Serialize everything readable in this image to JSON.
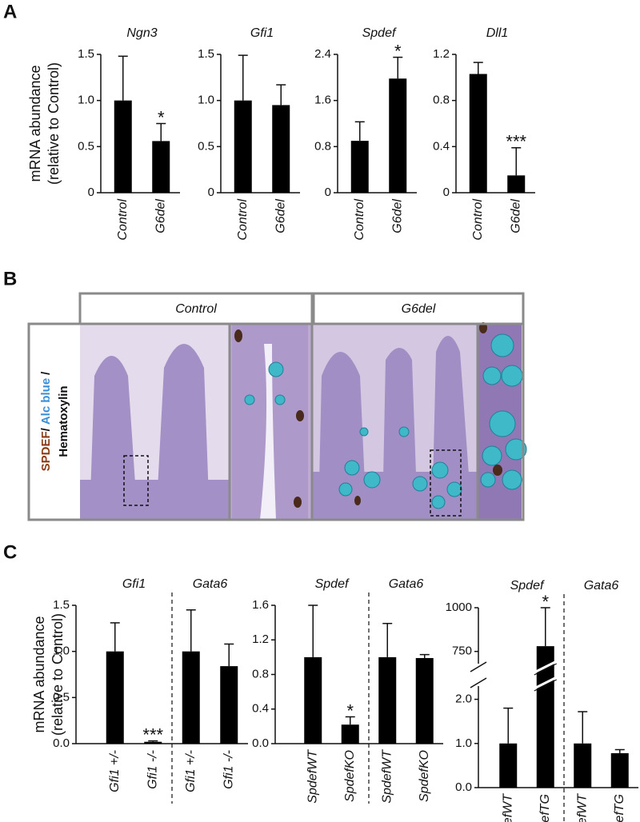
{
  "panel_labels": [
    "A",
    "B",
    "C"
  ],
  "panel_b": {
    "headers": [
      "Control",
      "G6del"
    ],
    "stain_label": [
      "SPDEF",
      "/",
      "Alc blue",
      "/",
      "Hematoxylin"
    ]
  },
  "chart_data": [
    {
      "type": "bar",
      "title": "Ngn3",
      "ylabel": [
        "mRNA abundance",
        "(relative to Control)"
      ],
      "color": "#000000",
      "categories": [
        "Control",
        "G6del"
      ],
      "values": [
        1.0,
        0.56
      ],
      "errors": [
        0.48,
        0.19
      ],
      "significance": [
        null,
        "*"
      ],
      "ylim": [
        0,
        1.5
      ],
      "yticks": [
        0,
        0.5,
        {
          "value": 1,
          "label": "1.0"
        },
        1.5
      ]
    },
    {
      "type": "bar",
      "title": "Gfi1",
      "color": "#000000",
      "categories": [
        "Control",
        "G6del"
      ],
      "values": [
        1.0,
        0.95
      ],
      "errors": [
        0.49,
        0.22
      ],
      "significance": [
        null,
        null
      ],
      "ylim": [
        0,
        1.5
      ],
      "yticks": [
        0,
        0.5,
        {
          "value": 1,
          "label": "1.0"
        },
        1.5
      ]
    },
    {
      "type": "bar",
      "title": "Spdef",
      "color": "#000000",
      "categories": [
        "Control",
        "G6del"
      ],
      "values": [
        0.9,
        1.98
      ],
      "errors": [
        0.33,
        0.37
      ],
      "significance": [
        null,
        "*"
      ],
      "ylim": [
        0,
        2.4
      ],
      "yticks": [
        0,
        0.8,
        1.6,
        2.4
      ]
    },
    {
      "type": "bar",
      "title": "Dll1",
      "color": "#000000",
      "categories": [
        "Control",
        "G6del"
      ],
      "values": [
        1.03,
        0.15
      ],
      "errors": [
        0.1,
        0.24
      ],
      "significance": [
        null,
        "***"
      ],
      "ylim": [
        0,
        1.2
      ],
      "yticks": [
        0,
        0.4,
        0.8,
        1.2
      ]
    },
    {
      "type": "bar",
      "group_titles": [
        "Gfi1",
        "Gata6"
      ],
      "ylabel": [
        "mRNA abundance",
        "(relative to Control)"
      ],
      "color": "#000000",
      "categories": [
        "Gfi1 +/-",
        "Gfi1 -/-",
        "Gfi1 +/-",
        "Gfi1 -/-"
      ],
      "values": [
        1.0,
        0.02,
        1.0,
        0.84
      ],
      "errors": [
        0.31,
        0.01,
        0.45,
        0.24
      ],
      "significance": [
        null,
        "***",
        null,
        null
      ],
      "ylim": [
        0,
        1.5
      ],
      "yticks": [
        {
          "value": 0,
          "label": "0.0"
        },
        0.5,
        {
          "value": 1,
          "label": "1.0"
        },
        1.5
      ]
    },
    {
      "type": "bar",
      "group_titles": [
        "Spdef",
        "Gata6"
      ],
      "color": "#000000",
      "categories": [
        "SpdefWT",
        "SpdefKO",
        "SpdefWT",
        "SpdefKO"
      ],
      "values": [
        1.0,
        0.22,
        1.0,
        0.99
      ],
      "errors": [
        0.6,
        0.09,
        0.39,
        0.04
      ],
      "significance": [
        null,
        "*",
        null,
        null
      ],
      "ylim": [
        0,
        1.6
      ],
      "yticks": [
        {
          "value": 0,
          "label": "0.0"
        },
        0.4,
        0.8,
        1.2,
        1.6
      ]
    },
    {
      "type": "bar",
      "group_titles": [
        "Spdef",
        "Gata6"
      ],
      "color": "#000000",
      "categories": [
        "SpdefWT",
        "SpdefTG",
        "SpdefWT",
        "SpdefTG"
      ],
      "values": [
        1.0,
        780,
        1.0,
        0.78
      ],
      "errors": [
        0.8,
        220,
        0.72,
        0.08
      ],
      "significance": [
        null,
        "*",
        null,
        null
      ],
      "ylim": [
        0,
        1000
      ],
      "ybreak": [
        2.3,
        680
      ],
      "yticks": [
        {
          "value": 0,
          "label": "0.0"
        },
        {
          "value": 1,
          "label": "1.0"
        },
        {
          "value": 2,
          "label": "2.0"
        },
        750,
        1000
      ]
    }
  ]
}
